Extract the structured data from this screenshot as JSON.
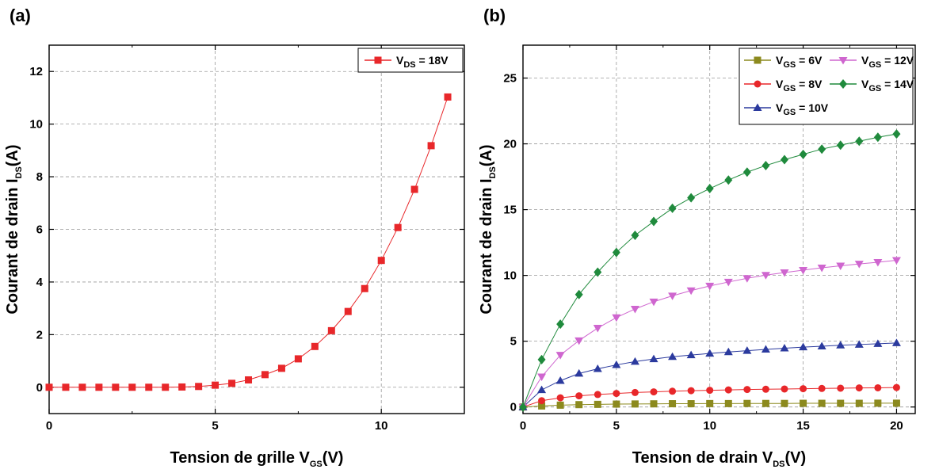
{
  "chart_data": [
    {
      "panel_label": "(a)",
      "type": "line",
      "xlabel_main": "Tension de grille V",
      "xlabel_sub": "GS",
      "xlabel_end": "(V)",
      "ylabel_main": "Courant de drain I",
      "ylabel_sub": "DS",
      "ylabel_end": "(A)",
      "xlim": [
        0,
        12.5
      ],
      "ylim": [
        -1,
        13
      ],
      "xticks": [
        0,
        5,
        10
      ],
      "yticks": [
        0,
        2,
        4,
        6,
        8,
        10,
        12
      ],
      "grid": true,
      "legend_position": "top-right",
      "series": [
        {
          "legend_main": "V",
          "legend_sub": "DS",
          "legend_end": " = 18V",
          "color": "#e8272a",
          "marker": "square",
          "x": [
            0,
            0.5,
            1,
            1.5,
            2,
            2.5,
            3,
            3.5,
            4,
            4.5,
            5,
            5.5,
            6,
            6.5,
            7,
            7.5,
            8,
            8.5,
            9,
            9.5,
            10,
            10.5,
            11,
            11.5,
            12
          ],
          "y": [
            0,
            0,
            0,
            0,
            0,
            0,
            0,
            0,
            0.01,
            0.03,
            0.08,
            0.15,
            0.28,
            0.48,
            0.72,
            1.08,
            1.55,
            2.15,
            2.88,
            3.75,
            4.82,
            6.07,
            7.52,
            9.18,
            11.03
          ]
        }
      ]
    },
    {
      "panel_label": "(b)",
      "type": "line",
      "xlabel_main": "Tension de drain V",
      "xlabel_sub": "DS",
      "xlabel_end": "(V)",
      "ylabel_main": "Courant de drain I",
      "ylabel_sub": "DS",
      "ylabel_end": "(A)",
      "xlim": [
        0,
        21
      ],
      "ylim": [
        -0.5,
        27.5
      ],
      "xticks": [
        0,
        5,
        10,
        15,
        20
      ],
      "yticks": [
        0,
        5,
        10,
        15,
        20,
        25
      ],
      "grid": true,
      "legend_position": "top-right",
      "x": [
        0,
        1,
        2,
        3,
        4,
        5,
        6,
        7,
        8,
        9,
        10,
        11,
        12,
        13,
        14,
        15,
        16,
        17,
        18,
        19,
        20
      ],
      "series": [
        {
          "legend_main": "V",
          "legend_sub": "GS",
          "legend_end": " = 6V",
          "color": "#8c8a1e",
          "marker": "square",
          "values": [
            0,
            0.08,
            0.14,
            0.18,
            0.2,
            0.22,
            0.23,
            0.24,
            0.25,
            0.25,
            0.26,
            0.26,
            0.27,
            0.27,
            0.27,
            0.28,
            0.28,
            0.28,
            0.28,
            0.29,
            0.29
          ]
        },
        {
          "legend_main": "V",
          "legend_sub": "GS",
          "legend_end": " = 8V",
          "color": "#e8272a",
          "marker": "circle",
          "values": [
            0,
            0.48,
            0.7,
            0.85,
            0.95,
            1.03,
            1.1,
            1.15,
            1.2,
            1.24,
            1.27,
            1.3,
            1.33,
            1.35,
            1.37,
            1.39,
            1.41,
            1.43,
            1.45,
            1.46,
            1.48
          ]
        },
        {
          "legend_main": "V",
          "legend_sub": "GS",
          "legend_end": " = 10V",
          "color": "#2b3a9e",
          "marker": "triangle-up",
          "values": [
            0,
            1.3,
            2.0,
            2.55,
            2.9,
            3.2,
            3.45,
            3.65,
            3.82,
            3.95,
            4.07,
            4.18,
            4.28,
            4.38,
            4.47,
            4.55,
            4.62,
            4.69,
            4.75,
            4.81,
            4.87
          ]
        },
        {
          "legend_main": "V",
          "legend_sub": "GS",
          "legend_end": " = 12V",
          "color": "#cf66cf",
          "marker": "triangle-down",
          "values": [
            0,
            2.3,
            3.95,
            5.05,
            6.0,
            6.8,
            7.45,
            8.0,
            8.45,
            8.85,
            9.2,
            9.5,
            9.78,
            10.02,
            10.22,
            10.4,
            10.58,
            10.73,
            10.87,
            11.0,
            11.15
          ]
        },
        {
          "legend_main": "V",
          "legend_sub": "GS",
          "legend_end": " = 14V",
          "color": "#1f8a3c",
          "marker": "diamond",
          "values": [
            0,
            3.6,
            6.3,
            8.55,
            10.25,
            11.75,
            13.05,
            14.1,
            15.1,
            15.9,
            16.6,
            17.25,
            17.85,
            18.35,
            18.8,
            19.2,
            19.6,
            19.9,
            20.2,
            20.5,
            20.75
          ]
        }
      ]
    }
  ]
}
